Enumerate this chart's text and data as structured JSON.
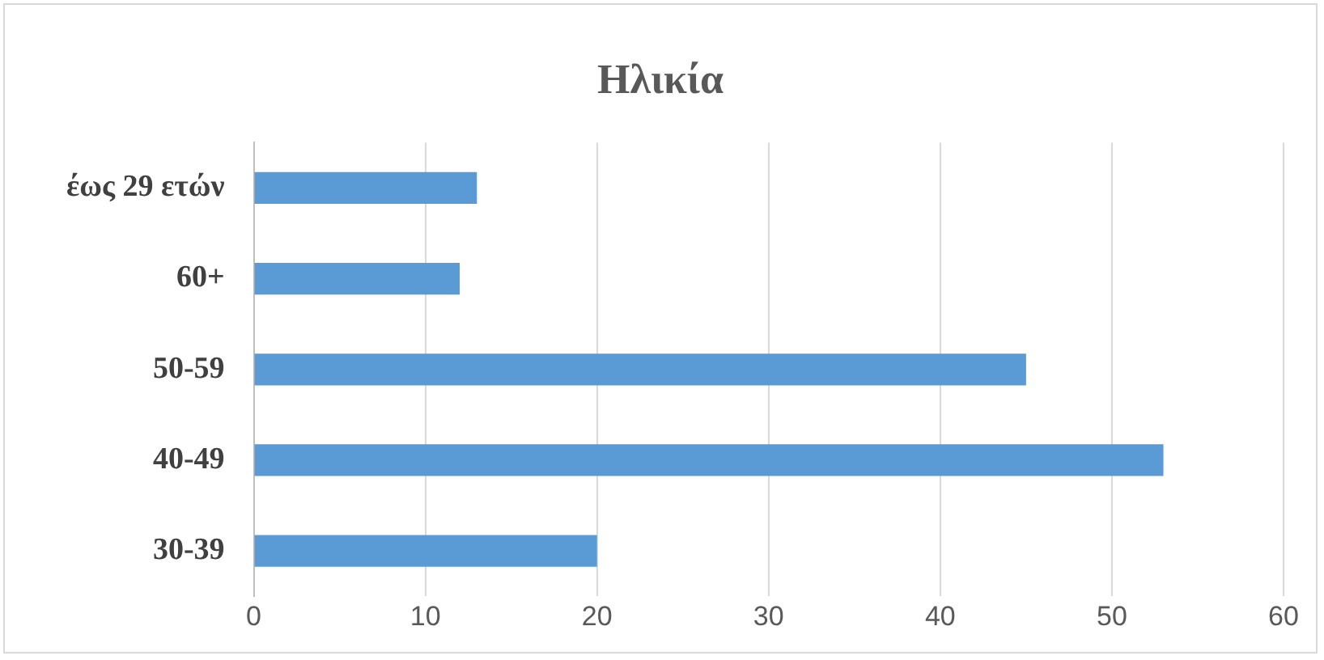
{
  "chart_data": {
    "type": "bar",
    "orientation": "horizontal",
    "title": "Ηλικία",
    "categories": [
      "έως 29 ετών",
      "60+",
      "50-59",
      "40-49",
      "30-39"
    ],
    "values": [
      13,
      12,
      45,
      53,
      20
    ],
    "color": "#5b9bd5",
    "xlim": [
      0,
      60
    ],
    "xticks": [
      0,
      10,
      20,
      30,
      40,
      50,
      60
    ],
    "grid": "x"
  }
}
